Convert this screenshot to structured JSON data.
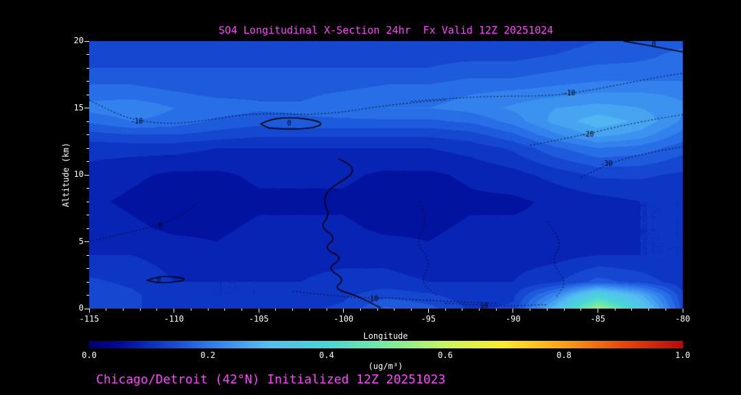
{
  "title": "SO4 Longitudinal X-Section 24hr  Fx Valid 12Z 20251024",
  "caption": "Chicago/Detroit (42°N) Initialized 12Z 20251023",
  "colors": {
    "background": "#000000",
    "title_text": "#ff44ff",
    "caption_text": "#ff44ff",
    "axis_text": "#ffffff",
    "tick_mark": "#ffffff",
    "contour_line": "#000000"
  },
  "axes": {
    "x": {
      "label": "Longitude",
      "min": -115,
      "max": -80,
      "ticks": [
        -115,
        -110,
        -105,
        -100,
        -95,
        -90,
        -85,
        -80
      ],
      "minor_step": 1
    },
    "y": {
      "label": "Altitude (km)",
      "min": 0,
      "max": 20,
      "ticks": [
        0,
        5,
        10,
        15,
        20
      ],
      "minor_step": 1
    }
  },
  "colorbar": {
    "min": 0.0,
    "max": 1.0,
    "tick_labels": [
      "0.0",
      "0.2",
      "0.4",
      "0.6",
      "0.8",
      "1.0"
    ],
    "tick_values": [
      0.0,
      0.2,
      0.4,
      0.6,
      0.8,
      1.0
    ],
    "units": "(ug/m³)",
    "stops": [
      {
        "v": 0.0,
        "rgb": [
          0,
          0,
          110
        ]
      },
      {
        "v": 0.05,
        "rgb": [
          0,
          10,
          150
        ]
      },
      {
        "v": 0.1,
        "rgb": [
          10,
          45,
          190
        ]
      },
      {
        "v": 0.15,
        "rgb": [
          25,
          80,
          215
        ]
      },
      {
        "v": 0.2,
        "rgb": [
          45,
          120,
          235
        ]
      },
      {
        "v": 0.25,
        "rgb": [
          65,
          155,
          240
        ]
      },
      {
        "v": 0.3,
        "rgb": [
          85,
          190,
          240
        ]
      },
      {
        "v": 0.4,
        "rgb": [
          70,
          215,
          215
        ]
      },
      {
        "v": 0.5,
        "rgb": [
          120,
          235,
          160
        ]
      },
      {
        "v": 0.6,
        "rgb": [
          200,
          245,
          90
        ]
      },
      {
        "v": 0.7,
        "rgb": [
          255,
          235,
          40
        ]
      },
      {
        "v": 0.8,
        "rgb": [
          255,
          160,
          20
        ]
      },
      {
        "v": 0.9,
        "rgb": [
          235,
          70,
          10
        ]
      },
      {
        "v": 1.0,
        "rgb": [
          185,
          10,
          10
        ]
      }
    ]
  },
  "chart_data": {
    "type": "heatmap",
    "title": "SO4 concentration longitudinal cross-section, 24hr forecast valid 12Z 20251024",
    "xlabel": "Longitude",
    "ylabel": "Altitude (km)",
    "value_units": "ug/m3",
    "value_range": [
      0.0,
      1.0
    ],
    "contour_levels_step": 0.025,
    "x": [
      -115,
      -112.5,
      -110,
      -107.5,
      -105,
      -102.5,
      -100,
      -97.5,
      -95,
      -92.5,
      -90,
      -87.5,
      -85,
      -82.5,
      -80
    ],
    "y": [
      0,
      1,
      2,
      4,
      6,
      8,
      10,
      12,
      13,
      14,
      15,
      16,
      17,
      18,
      19,
      20
    ],
    "values": [
      [
        0.14,
        0.13,
        0.11,
        0.1,
        0.11,
        0.12,
        0.13,
        0.18,
        0.16,
        0.12,
        0.13,
        0.3,
        0.55,
        0.35,
        0.14
      ],
      [
        0.14,
        0.13,
        0.11,
        0.1,
        0.1,
        0.11,
        0.12,
        0.14,
        0.13,
        0.11,
        0.12,
        0.22,
        0.38,
        0.28,
        0.13
      ],
      [
        0.13,
        0.12,
        0.1,
        0.1,
        0.1,
        0.1,
        0.11,
        0.11,
        0.1,
        0.1,
        0.1,
        0.12,
        0.16,
        0.14,
        0.11
      ],
      [
        0.1,
        0.1,
        0.09,
        0.08,
        0.09,
        0.09,
        0.09,
        0.09,
        0.08,
        0.09,
        0.09,
        0.09,
        0.1,
        0.1,
        0.1
      ],
      [
        0.09,
        0.08,
        0.07,
        0.07,
        0.08,
        0.08,
        0.08,
        0.07,
        0.07,
        0.08,
        0.08,
        0.08,
        0.09,
        0.1,
        0.1
      ],
      [
        0.08,
        0.07,
        0.06,
        0.06,
        0.07,
        0.07,
        0.07,
        0.06,
        0.06,
        0.07,
        0.07,
        0.08,
        0.09,
        0.1,
        0.1
      ],
      [
        0.09,
        0.08,
        0.07,
        0.07,
        0.08,
        0.08,
        0.08,
        0.07,
        0.07,
        0.08,
        0.09,
        0.11,
        0.13,
        0.13,
        0.12
      ],
      [
        0.11,
        0.11,
        0.11,
        0.1,
        0.1,
        0.1,
        0.1,
        0.1,
        0.1,
        0.11,
        0.13,
        0.17,
        0.2,
        0.19,
        0.16
      ],
      [
        0.14,
        0.15,
        0.15,
        0.14,
        0.13,
        0.13,
        0.13,
        0.13,
        0.13,
        0.14,
        0.17,
        0.22,
        0.26,
        0.24,
        0.19
      ],
      [
        0.18,
        0.2,
        0.19,
        0.17,
        0.16,
        0.17,
        0.17,
        0.17,
        0.17,
        0.18,
        0.21,
        0.26,
        0.29,
        0.27,
        0.22
      ],
      [
        0.21,
        0.22,
        0.2,
        0.19,
        0.18,
        0.18,
        0.19,
        0.2,
        0.2,
        0.21,
        0.23,
        0.25,
        0.26,
        0.25,
        0.23
      ],
      [
        0.19,
        0.19,
        0.18,
        0.17,
        0.17,
        0.17,
        0.18,
        0.19,
        0.19,
        0.2,
        0.21,
        0.22,
        0.23,
        0.23,
        0.22
      ],
      [
        0.17,
        0.17,
        0.16,
        0.16,
        0.16,
        0.16,
        0.16,
        0.17,
        0.17,
        0.18,
        0.18,
        0.19,
        0.2,
        0.2,
        0.2
      ],
      [
        0.15,
        0.15,
        0.15,
        0.15,
        0.15,
        0.15,
        0.15,
        0.15,
        0.15,
        0.16,
        0.16,
        0.17,
        0.18,
        0.18,
        0.18
      ],
      [
        0.14,
        0.14,
        0.14,
        0.14,
        0.14,
        0.14,
        0.14,
        0.14,
        0.14,
        0.14,
        0.14,
        0.15,
        0.16,
        0.17,
        0.18
      ],
      [
        0.13,
        0.13,
        0.13,
        0.13,
        0.13,
        0.13,
        0.13,
        0.13,
        0.13,
        0.13,
        0.13,
        0.14,
        0.15,
        0.16,
        0.17
      ]
    ],
    "overlay_contours": [
      {
        "style": "dotted",
        "label": "-10",
        "label_pos": [
          -112.2,
          14.0
        ],
        "points": [
          [
            -115,
            15.6
          ],
          [
            -113.5,
            14.6
          ],
          [
            -112,
            14.0
          ],
          [
            -110,
            13.8
          ],
          [
            -108,
            14.1
          ],
          [
            -106,
            14.5
          ],
          [
            -104,
            14.6
          ],
          [
            -102,
            14.5
          ],
          [
            -100,
            14.7
          ],
          [
            -98,
            15.1
          ],
          [
            -96,
            15.4
          ],
          [
            -94,
            15.6
          ]
        ]
      },
      {
        "style": "dotted",
        "label": "-10",
        "label_pos": [
          -86.7,
          16.1
        ],
        "points": [
          [
            -96,
            15.5
          ],
          [
            -93,
            15.8
          ],
          [
            -90,
            15.9
          ],
          [
            -88,
            15.9
          ],
          [
            -86,
            16.2
          ],
          [
            -83.5,
            16.8
          ],
          [
            -81.5,
            17.3
          ],
          [
            -80,
            17.6
          ]
        ]
      },
      {
        "style": "dotted",
        "label": "-20",
        "label_pos": [
          -85.6,
          13.0
        ],
        "points": [
          [
            -89,
            12.2
          ],
          [
            -87,
            12.7
          ],
          [
            -85.5,
            13.1
          ],
          [
            -83.5,
            13.7
          ],
          [
            -81.5,
            14.2
          ],
          [
            -80,
            14.5
          ]
        ]
      },
      {
        "style": "dotted",
        "label": "-30",
        "label_pos": [
          -84.5,
          10.8
        ],
        "points": [
          [
            -86,
            9.8
          ],
          [
            -84.8,
            10.6
          ],
          [
            -83.5,
            11.2
          ],
          [
            -81.8,
            11.7
          ],
          [
            -80,
            12.1
          ]
        ]
      },
      {
        "style": "solid",
        "label": "0",
        "label_pos": [
          -103.2,
          13.85
        ],
        "closed": true,
        "points": [
          [
            -104.9,
            13.8
          ],
          [
            -104.3,
            14.2
          ],
          [
            -103,
            14.3
          ],
          [
            -101.7,
            14.1
          ],
          [
            -101.2,
            13.8
          ],
          [
            -101.8,
            13.5
          ],
          [
            -103.2,
            13.4
          ],
          [
            -104.4,
            13.5
          ]
        ]
      },
      {
        "style": "solid",
        "label": "",
        "label_pos": null,
        "points": [
          [
            -100.3,
            11.2
          ],
          [
            -99.6,
            10.8
          ],
          [
            -99.4,
            10.2
          ],
          [
            -100.0,
            9.6
          ],
          [
            -100.9,
            8.9
          ],
          [
            -101.2,
            8.0
          ],
          [
            -100.8,
            7.0
          ],
          [
            -101.4,
            6.1
          ],
          [
            -100.4,
            5.3
          ],
          [
            -101.2,
            4.5
          ],
          [
            -100.0,
            3.8
          ],
          [
            -101.0,
            3.0
          ],
          [
            -99.9,
            2.2
          ],
          [
            -100.6,
            1.5
          ],
          [
            -99.3,
            1.0
          ],
          [
            -98.5,
            0.5
          ],
          [
            -97.8,
            0.05
          ]
        ]
      },
      {
        "style": "solid",
        "label": "0",
        "label_pos": [
          -110.9,
          2.15
        ],
        "closed": true,
        "points": [
          [
            -111.6,
            2.1
          ],
          [
            -111.0,
            2.4
          ],
          [
            -110.0,
            2.4
          ],
          [
            -109.2,
            2.2
          ],
          [
            -110.0,
            1.95
          ],
          [
            -111.0,
            1.95
          ]
        ]
      },
      {
        "style": "dotted",
        "label": "10",
        "label_pos": [
          -98.2,
          0.7
        ],
        "points": [
          [
            -103,
            1.3
          ],
          [
            -101,
            1.0
          ],
          [
            -99,
            0.8
          ],
          [
            -97,
            0.8
          ],
          [
            -95,
            0.6
          ],
          [
            -93,
            0.5
          ],
          [
            -91,
            0.4
          ]
        ]
      },
      {
        "style": "dotted",
        "label": "10",
        "label_pos": [
          -91.7,
          0.2
        ],
        "points": [
          [
            -94,
            0.4
          ],
          [
            -92,
            0.25
          ],
          [
            -90,
            0.2
          ],
          [
            -88,
            0.3
          ]
        ]
      },
      {
        "style": "solid",
        "label": "0",
        "label_pos": [
          -81.7,
          19.7
        ],
        "points": [
          [
            -83.5,
            20.0
          ],
          [
            -82.5,
            19.8
          ],
          [
            -81.3,
            19.5
          ],
          [
            -80,
            19.2
          ]
        ]
      },
      {
        "style": "dotted",
        "label": "0",
        "label_pos": [
          -110.8,
          6.2
        ],
        "points": [
          [
            -115,
            5.0
          ],
          [
            -113,
            5.6
          ],
          [
            -111,
            6.2
          ],
          [
            -109.5,
            7.0
          ],
          [
            -108.5,
            8.0
          ]
        ]
      },
      {
        "style": "dotted",
        "label": "",
        "label_pos": null,
        "points": [
          [
            -95.5,
            8.0
          ],
          [
            -95,
            6.5
          ],
          [
            -95.8,
            5.0
          ],
          [
            -94.8,
            3.5
          ],
          [
            -95.5,
            2.0
          ],
          [
            -94.5,
            1.0
          ]
        ]
      },
      {
        "style": "dotted",
        "label": "",
        "label_pos": null,
        "points": [
          [
            -88,
            6.5
          ],
          [
            -87,
            5.0
          ],
          [
            -87.8,
            3.5
          ],
          [
            -86.8,
            2.0
          ],
          [
            -87.5,
            0.8
          ]
        ]
      }
    ]
  }
}
